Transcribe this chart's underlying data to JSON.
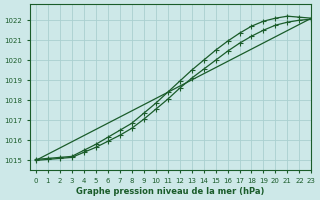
{
  "bg_color": "#cde8e8",
  "grid_color": "#aad0d0",
  "line_color": "#1a5c2a",
  "title": "Graphe pression niveau de la mer (hPa)",
  "xlim": [
    -0.5,
    23
  ],
  "ylim": [
    1014.5,
    1022.8
  ],
  "xticks": [
    0,
    1,
    2,
    3,
    4,
    5,
    6,
    7,
    8,
    9,
    10,
    11,
    12,
    13,
    14,
    15,
    16,
    17,
    18,
    19,
    20,
    21,
    22,
    23
  ],
  "yticks": [
    1015,
    1016,
    1017,
    1018,
    1019,
    1020,
    1021,
    1022
  ],
  "line1_x": [
    0,
    1,
    2,
    3,
    4,
    5,
    6,
    7,
    8,
    9,
    10,
    11,
    12,
    13,
    14,
    15,
    16,
    17,
    18,
    19,
    20,
    21,
    22,
    23
  ],
  "line1_y": [
    1015.0,
    1015.05,
    1015.1,
    1015.15,
    1015.4,
    1015.65,
    1015.95,
    1016.25,
    1016.6,
    1017.05,
    1017.55,
    1018.05,
    1018.6,
    1019.1,
    1019.55,
    1020.0,
    1020.45,
    1020.85,
    1021.2,
    1021.5,
    1021.75,
    1021.9,
    1022.0,
    1022.05
  ],
  "line2_x": [
    0,
    1,
    2,
    3,
    4,
    5,
    6,
    7,
    8,
    9,
    10,
    11,
    12,
    13,
    14,
    15,
    16,
    17,
    18,
    19,
    20,
    21,
    22,
    23
  ],
  "line2_y": [
    1015.05,
    1015.1,
    1015.15,
    1015.2,
    1015.5,
    1015.8,
    1016.15,
    1016.5,
    1016.85,
    1017.35,
    1017.85,
    1018.4,
    1018.95,
    1019.5,
    1020.0,
    1020.5,
    1020.95,
    1021.35,
    1021.7,
    1021.95,
    1022.1,
    1022.2,
    1022.15,
    1022.1
  ],
  "line3_x": [
    0,
    23
  ],
  "line3_y": [
    1015.0,
    1022.1
  ],
  "figsize": [
    3.2,
    2.0
  ],
  "dpi": 100
}
